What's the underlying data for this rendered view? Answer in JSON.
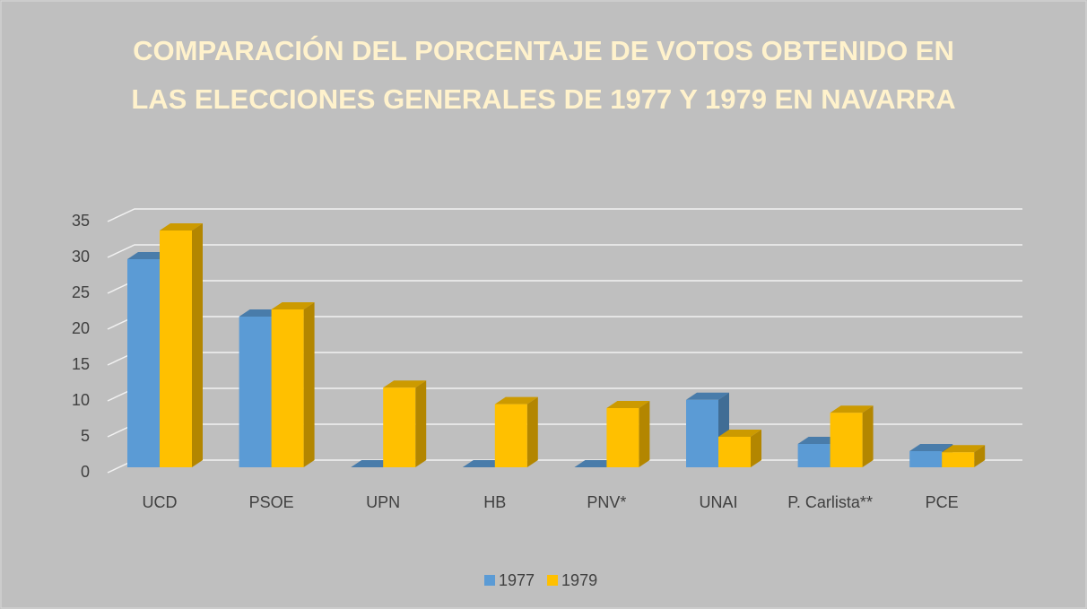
{
  "chart_data": {
    "type": "bar3d",
    "title": "COMPARACIÓN DEL PORCENTAJE DE VOTOS OBTENIDO EN LAS ELECCIONES GENERALES DE 1977 Y 1979 EN NAVARRA",
    "categories": [
      "UCD",
      "PSOE",
      "UPN",
      "HB",
      "PNV*",
      "UNAI",
      "P. Carlista**",
      "PCE"
    ],
    "series": [
      {
        "name": "1977",
        "color": "#5b9bd5",
        "values": [
          29,
          21,
          0,
          0,
          0,
          9.4,
          3.25,
          2.25
        ]
      },
      {
        "name": "1979",
        "color": "#ffc000",
        "values": [
          33,
          22,
          11.1,
          8.8,
          8.25,
          4.25,
          7.6,
          2.1
        ]
      }
    ],
    "ylim": [
      0,
      35
    ],
    "yticks": [
      0,
      5,
      10,
      15,
      20,
      25,
      30,
      35
    ],
    "grid": true,
    "legend": "bottom"
  }
}
